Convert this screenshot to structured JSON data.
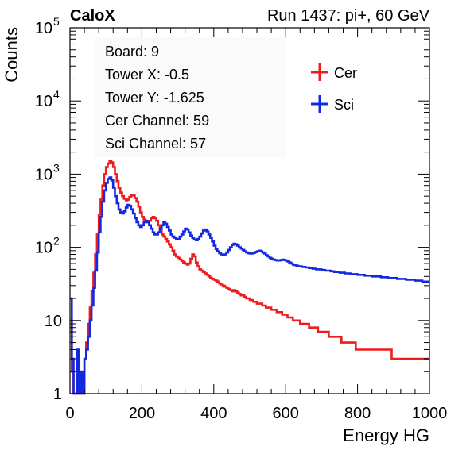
{
  "header": {
    "left_label": "CaloX",
    "run_label": "Run 1437: pi+, 60 GeV"
  },
  "info_box": {
    "lines": [
      "Board: 9",
      "Tower X: -0.5",
      "Tower Y: -1.625",
      "Cer Channel: 59",
      "Sci Channel: 57"
    ]
  },
  "chart_data": {
    "type": "line",
    "title": "",
    "xlabel": "Energy HG",
    "ylabel": "Counts",
    "xlim": [
      0,
      1000
    ],
    "ylim": [
      1,
      100000
    ],
    "yscale": "log",
    "grid": false,
    "legend_position": "top-right",
    "x_ticks": [
      "0",
      "200",
      "400",
      "600",
      "800",
      "1000"
    ],
    "y_ticks": [
      {
        "base": "1",
        "exp": ""
      },
      {
        "base": "10",
        "exp": ""
      },
      {
        "base": "10",
        "exp": "2"
      },
      {
        "base": "10",
        "exp": "3"
      },
      {
        "base": "10",
        "exp": "4"
      },
      {
        "base": "10",
        "exp": "5"
      }
    ],
    "series": [
      {
        "name": "Cer",
        "color": "#ee1c1c",
        "x": [
          0,
          5,
          10,
          15,
          20,
          25,
          30,
          35,
          40,
          45,
          50,
          55,
          60,
          65,
          70,
          75,
          80,
          85,
          90,
          95,
          100,
          105,
          110,
          115,
          120,
          125,
          130,
          135,
          140,
          145,
          150,
          155,
          160,
          165,
          170,
          175,
          180,
          185,
          190,
          195,
          200,
          205,
          210,
          215,
          220,
          225,
          230,
          235,
          240,
          245,
          250,
          255,
          260,
          265,
          270,
          275,
          280,
          285,
          290,
          295,
          300,
          305,
          310,
          315,
          320,
          325,
          330,
          335,
          340,
          345,
          350,
          355,
          360,
          365,
          370,
          375,
          380,
          385,
          390,
          395,
          400,
          405,
          410,
          415,
          420,
          425,
          430,
          435,
          440,
          445,
          450,
          455,
          460,
          465,
          470,
          475,
          480,
          485,
          490,
          495,
          500,
          505,
          510,
          515,
          520,
          525,
          530,
          535,
          540,
          545,
          550,
          555,
          560,
          565,
          570,
          575,
          580,
          585,
          590,
          595,
          600,
          605,
          610,
          615,
          620,
          625,
          630,
          635,
          640,
          645,
          650,
          655,
          660,
          665,
          670,
          675,
          680,
          685,
          690,
          695,
          700,
          705,
          710,
          715,
          720,
          725,
          730,
          735,
          740,
          745,
          750,
          755,
          760,
          765,
          770,
          775,
          780,
          785,
          790,
          795,
          800,
          805,
          810,
          815,
          820,
          825,
          830,
          835,
          840,
          845,
          850,
          855,
          860,
          865,
          870,
          875,
          880,
          885,
          890,
          895,
          900,
          905,
          910,
          915,
          920,
          925,
          930,
          935,
          940,
          945,
          950,
          955,
          960,
          965,
          970,
          975,
          980,
          985,
          990,
          995
        ],
        "values": [
          10,
          2,
          1,
          1,
          3,
          1,
          2,
          1,
          3,
          5,
          9,
          15,
          25,
          45,
          80,
          150,
          280,
          450,
          700,
          1000,
          1250,
          1400,
          1500,
          1450,
          1250,
          1000,
          800,
          650,
          560,
          500,
          460,
          440,
          450,
          490,
          520,
          510,
          470,
          420,
          360,
          300,
          260,
          240,
          230,
          220,
          230,
          250,
          260,
          250,
          230,
          200,
          170,
          150,
          140,
          130,
          120,
          110,
          100,
          90,
          80,
          75,
          72,
          68,
          65,
          62,
          60,
          58,
          60,
          70,
          80,
          75,
          62,
          55,
          50,
          48,
          46,
          44,
          42,
          40,
          38,
          37,
          36,
          35,
          34,
          32,
          31,
          30,
          29,
          28,
          27,
          26,
          25,
          26,
          25,
          24,
          23,
          22,
          22,
          21,
          20,
          20,
          19,
          19,
          18,
          18,
          17,
          17,
          17,
          16,
          16,
          15,
          15,
          15,
          14,
          14,
          14,
          13,
          13,
          13,
          12,
          12,
          12,
          11,
          11,
          11,
          10,
          10,
          10,
          10,
          9,
          9,
          9,
          9,
          9,
          8,
          8,
          8,
          8,
          8,
          7,
          7,
          7,
          7,
          7,
          7,
          6,
          6,
          6,
          6,
          6,
          6,
          6,
          5,
          5,
          5,
          5,
          5,
          5,
          5,
          5,
          4,
          4,
          4,
          4,
          4,
          4,
          4,
          4,
          4,
          4,
          4,
          4,
          4,
          4,
          4,
          4,
          4,
          4,
          4,
          4,
          3,
          3,
          3,
          3,
          3,
          3,
          3,
          3,
          3,
          3,
          3,
          3,
          3,
          3,
          3,
          3,
          3,
          3,
          3,
          3,
          3
        ]
      },
      {
        "name": "Sci",
        "color": "#1428e0",
        "x": [
          0,
          5,
          10,
          15,
          20,
          25,
          30,
          35,
          40,
          45,
          50,
          55,
          60,
          65,
          70,
          75,
          80,
          85,
          90,
          95,
          100,
          105,
          110,
          115,
          120,
          125,
          130,
          135,
          140,
          145,
          150,
          155,
          160,
          165,
          170,
          175,
          180,
          185,
          190,
          195,
          200,
          205,
          210,
          215,
          220,
          225,
          230,
          235,
          240,
          245,
          250,
          255,
          260,
          265,
          270,
          275,
          280,
          285,
          290,
          295,
          300,
          305,
          310,
          315,
          320,
          325,
          330,
          335,
          340,
          345,
          350,
          355,
          360,
          365,
          370,
          375,
          380,
          385,
          390,
          395,
          400,
          405,
          410,
          415,
          420,
          425,
          430,
          435,
          440,
          445,
          450,
          455,
          460,
          465,
          470,
          475,
          480,
          485,
          490,
          495,
          500,
          505,
          510,
          515,
          520,
          525,
          530,
          535,
          540,
          545,
          550,
          555,
          560,
          565,
          570,
          575,
          580,
          585,
          590,
          595,
          600,
          605,
          610,
          615,
          620,
          625,
          630,
          635,
          640,
          645,
          650,
          655,
          660,
          665,
          670,
          675,
          680,
          685,
          690,
          695,
          700,
          705,
          710,
          715,
          720,
          725,
          730,
          735,
          740,
          745,
          750,
          755,
          760,
          765,
          770,
          775,
          780,
          785,
          790,
          795,
          800,
          805,
          810,
          815,
          820,
          825,
          830,
          835,
          840,
          845,
          850,
          855,
          860,
          865,
          870,
          875,
          880,
          885,
          890,
          895,
          900,
          905,
          910,
          915,
          920,
          925,
          930,
          935,
          940,
          945,
          950,
          955,
          960,
          965,
          970,
          975,
          980,
          985,
          990,
          995
        ],
        "values": [
          20,
          3,
          1,
          1,
          4,
          1,
          2,
          1,
          3,
          4,
          6,
          10,
          16,
          28,
          48,
          85,
          160,
          260,
          420,
          600,
          760,
          860,
          900,
          820,
          650,
          500,
          400,
          330,
          300,
          290,
          310,
          350,
          380,
          370,
          330,
          290,
          250,
          220,
          200,
          190,
          200,
          220,
          230,
          220,
          200,
          180,
          160,
          150,
          150,
          160,
          180,
          200,
          220,
          210,
          190,
          170,
          150,
          140,
          135,
          130,
          130,
          140,
          150,
          165,
          180,
          175,
          160,
          145,
          135,
          128,
          125,
          130,
          140,
          155,
          170,
          175,
          165,
          150,
          135,
          120,
          105,
          95,
          88,
          83,
          80,
          78,
          80,
          85,
          92,
          100,
          108,
          112,
          110,
          105,
          100,
          96,
          92,
          88,
          85,
          83,
          82,
          82,
          84,
          86,
          88,
          90,
          88,
          85,
          82,
          78,
          75,
          72,
          70,
          68,
          67,
          66,
          66,
          67,
          68,
          67,
          66,
          64,
          62,
          60,
          58,
          57,
          56,
          55,
          55,
          54,
          54,
          53,
          53,
          52,
          52,
          51,
          51,
          50,
          50,
          50,
          49,
          49,
          48,
          48,
          48,
          47,
          47,
          46,
          46,
          46,
          45,
          45,
          45,
          44,
          44,
          44,
          43,
          43,
          43,
          43,
          42,
          42,
          42,
          42,
          41,
          41,
          41,
          41,
          40,
          40,
          40,
          40,
          40,
          39,
          39,
          39,
          39,
          38,
          38,
          38,
          38,
          38,
          37,
          37,
          37,
          37,
          37,
          36,
          36,
          36,
          36,
          36,
          35,
          35,
          35,
          35,
          34,
          34,
          34,
          34
        ]
      }
    ]
  }
}
